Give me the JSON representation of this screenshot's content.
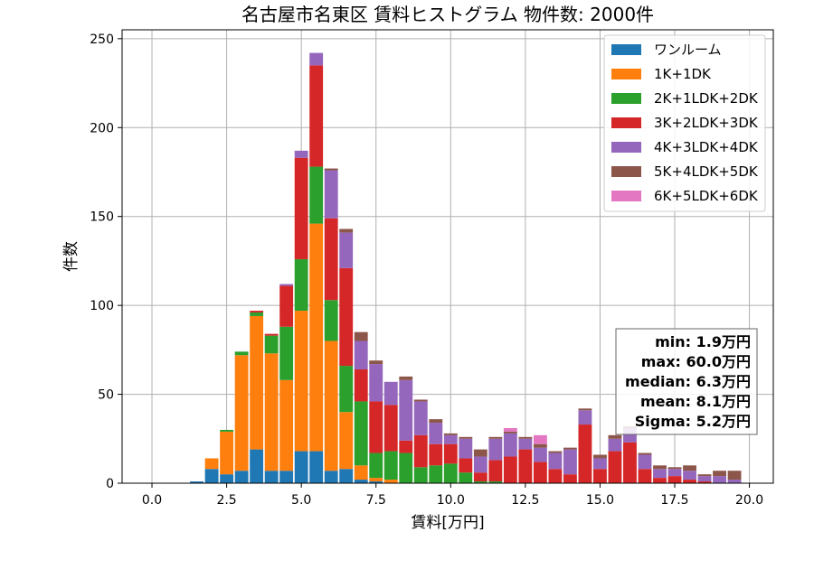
{
  "chart_data": {
    "type": "bar",
    "stacked": true,
    "title": "名古屋市名東区 賃料ヒストグラム 物件数: 2000件",
    "xlabel": "賃料[万円]",
    "ylabel": "件数",
    "xlim": [
      -1.0,
      20.8
    ],
    "ylim": [
      0,
      255
    ],
    "xticks": [
      0.0,
      2.5,
      5.0,
      7.5,
      10.0,
      12.5,
      15.0,
      17.5,
      20.0
    ],
    "yticks": [
      0,
      50,
      100,
      150,
      200,
      250
    ],
    "grid": true,
    "legend_position": "top-right",
    "bin_width": 0.5,
    "x": [
      0.0,
      0.5,
      1.0,
      1.5,
      2.0,
      2.5,
      3.0,
      3.5,
      4.0,
      4.5,
      5.0,
      5.5,
      6.0,
      6.5,
      7.0,
      7.5,
      8.0,
      8.5,
      9.0,
      9.5,
      10.0,
      10.5,
      11.0,
      11.5,
      12.0,
      12.5,
      13.0,
      13.5,
      14.0,
      14.5,
      15.0,
      15.5,
      16.0,
      16.5,
      17.0,
      17.5,
      18.0,
      18.5,
      19.0,
      19.5
    ],
    "series": [
      {
        "name": "ワンルーム",
        "color": "#1f77b4",
        "values": [
          0,
          0,
          0,
          1,
          8,
          5,
          7,
          19,
          7,
          7,
          18,
          18,
          7,
          8,
          2,
          1,
          0,
          0,
          0,
          0,
          0,
          0,
          0,
          0,
          0,
          0,
          0,
          0,
          0,
          0,
          0,
          0,
          0,
          0,
          0,
          0,
          0,
          0,
          0,
          0
        ]
      },
      {
        "name": "1K+1DK",
        "color": "#ff7f0e",
        "values": [
          0,
          0,
          0,
          0,
          6,
          24,
          65,
          75,
          66,
          51,
          79,
          128,
          73,
          32,
          8,
          2,
          2,
          0,
          0,
          0,
          0,
          0,
          0,
          0,
          0,
          0,
          0,
          0,
          0,
          0,
          0,
          0,
          0,
          0,
          0,
          0,
          0,
          0,
          0,
          0
        ]
      },
      {
        "name": "2K+1LDK+2DK",
        "color": "#2ca02c",
        "values": [
          0,
          0,
          0,
          0,
          0,
          1,
          2,
          2,
          10,
          30,
          29,
          32,
          23,
          26,
          36,
          14,
          16,
          17,
          9,
          10,
          11,
          6,
          1,
          1,
          0,
          0,
          0,
          0,
          0,
          0,
          0,
          0,
          0,
          0,
          0,
          0,
          0,
          0,
          0,
          0
        ]
      },
      {
        "name": "3K+2LDK+3DK",
        "color": "#d62728",
        "values": [
          0,
          0,
          0,
          0,
          0,
          0,
          0,
          1,
          1,
          23,
          57,
          57,
          46,
          55,
          18,
          29,
          26,
          7,
          18,
          12,
          11,
          8,
          5,
          12,
          15,
          19,
          12,
          8,
          5,
          33,
          8,
          18,
          23,
          8,
          3,
          4,
          2,
          1,
          0,
          0
        ]
      },
      {
        "name": "4K+3LDK+4DK",
        "color": "#9467bd",
        "values": [
          0,
          0,
          0,
          0,
          0,
          0,
          0,
          0,
          0,
          1,
          4,
          7,
          27,
          20,
          16,
          21,
          13,
          34,
          19,
          12,
          5,
          11,
          9,
          12,
          13,
          6,
          8,
          9,
          14,
          8,
          6,
          7,
          8,
          8,
          5,
          4,
          5,
          3,
          4,
          2
        ]
      },
      {
        "name": "5K+4LDK+5DK",
        "color": "#8c564b",
        "values": [
          0,
          0,
          0,
          0,
          0,
          0,
          0,
          0,
          0,
          0,
          0,
          0,
          1,
          2,
          5,
          2,
          0,
          2,
          1,
          2,
          1,
          1,
          4,
          1,
          1,
          1,
          2,
          1,
          1,
          1,
          2,
          2,
          1,
          1,
          2,
          1,
          3,
          1,
          3,
          5
        ]
      },
      {
        "name": "6K+5LDK+6DK",
        "color": "#e377c2",
        "values": [
          0,
          0,
          0,
          0,
          0,
          0,
          0,
          0,
          0,
          0,
          0,
          0,
          0,
          0,
          0,
          0,
          0,
          0,
          0,
          0,
          0,
          0,
          0,
          0,
          2,
          0,
          5,
          0,
          0,
          0,
          0,
          0,
          0,
          0,
          0,
          0,
          0,
          0,
          0,
          0
        ]
      }
    ]
  },
  "stats": {
    "min": "min: 1.9万円",
    "max": "max: 60.0万円",
    "median": "median: 6.3万円",
    "mean": "mean: 8.1万円",
    "sigma": "Sigma: 5.2万円"
  }
}
